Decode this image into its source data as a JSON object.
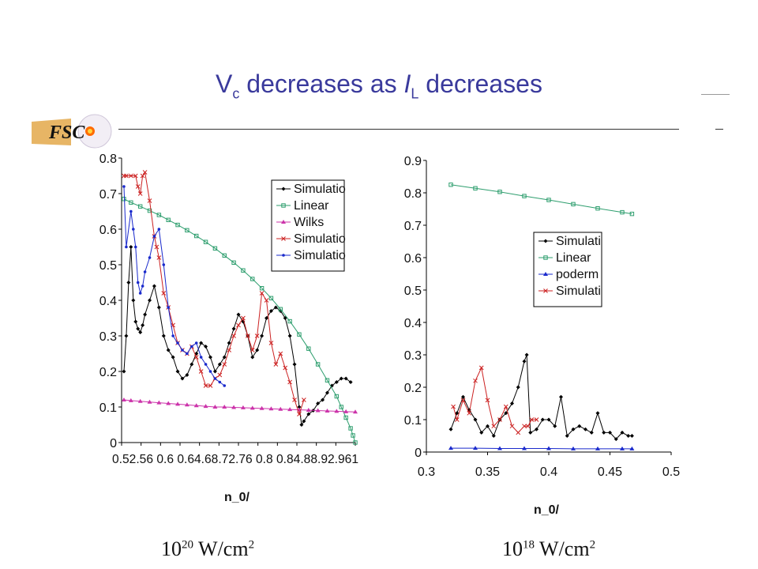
{
  "page": {
    "title_prefix": "V",
    "title_sub": "c",
    "title_mid": " decreases as ",
    "title_il": "I",
    "title_il_sub": "L",
    "title_suffix": " decreases",
    "logo": "FSC",
    "captions": [
      {
        "base": "10",
        "exp": "20",
        "unit": " W/cm",
        "unit_exp": "2"
      },
      {
        "base": "10",
        "exp": "18",
        "unit": " W/cm",
        "unit_exp": "2"
      }
    ]
  },
  "chart_data": [
    {
      "type": "line",
      "xlabel": "n_0/",
      "ylabel": "",
      "xlim": [
        0.5,
        1.0
      ],
      "ylim": [
        0,
        0.8
      ],
      "yticks": [
        "0",
        "0.1",
        "0.2",
        "0.3",
        "0.4",
        "0.5",
        "0.6",
        "0.7",
        "0.8"
      ],
      "xticks": [
        "0.52",
        "0.56",
        "0.6",
        "0.64",
        "0.68",
        "0.72",
        "0.76",
        "0.8",
        "0.84",
        "0.88",
        "0.92",
        "0.96",
        "1"
      ],
      "xtick_text": "0.52.56 0.6 0.64.68.72.76 0.8 0.84.88.92.961",
      "legend": {
        "position": "top-right",
        "labels": [
          "Simulatio",
          "Linear",
          "Wilks",
          "Simulatio",
          "Simulatio"
        ]
      },
      "colors": {
        "black": "#000000",
        "green": "#2e9e6e",
        "magenta": "#cc33aa",
        "red": "#cc2222",
        "blue": "#1a2acc"
      },
      "series": [
        {
          "color": "black",
          "marker": "diamond",
          "x": [
            0.505,
            0.51,
            0.515,
            0.52,
            0.525,
            0.53,
            0.535,
            0.54,
            0.545,
            0.55,
            0.56,
            0.57,
            0.58,
            0.59,
            0.6,
            0.61,
            0.62,
            0.63,
            0.64,
            0.65,
            0.66,
            0.67,
            0.68,
            0.69,
            0.7,
            0.71,
            0.72,
            0.73,
            0.74,
            0.75,
            0.76,
            0.77,
            0.78,
            0.79,
            0.8,
            0.81,
            0.82,
            0.83,
            0.84,
            0.85,
            0.86,
            0.87,
            0.88,
            0.885,
            0.89,
            0.9,
            0.91,
            0.92,
            0.93,
            0.94,
            0.95,
            0.96,
            0.97,
            0.98,
            0.99
          ],
          "y": [
            0.2,
            0.3,
            0.45,
            0.55,
            0.4,
            0.34,
            0.32,
            0.31,
            0.33,
            0.36,
            0.4,
            0.44,
            0.38,
            0.3,
            0.26,
            0.24,
            0.2,
            0.18,
            0.19,
            0.22,
            0.25,
            0.28,
            0.27,
            0.24,
            0.2,
            0.22,
            0.24,
            0.28,
            0.32,
            0.36,
            0.34,
            0.3,
            0.24,
            0.26,
            0.3,
            0.35,
            0.37,
            0.38,
            0.37,
            0.35,
            0.3,
            0.22,
            0.1,
            0.05,
            0.06,
            0.08,
            0.09,
            0.11,
            0.12,
            0.14,
            0.16,
            0.17,
            0.18,
            0.18,
            0.17
          ]
        },
        {
          "color": "green",
          "marker": "square",
          "x": [
            0.505,
            0.52,
            0.54,
            0.56,
            0.58,
            0.6,
            0.62,
            0.64,
            0.66,
            0.68,
            0.7,
            0.72,
            0.74,
            0.76,
            0.78,
            0.8,
            0.82,
            0.84,
            0.86,
            0.88,
            0.9,
            0.92,
            0.94,
            0.96,
            0.97,
            0.98,
            0.99,
            0.995,
            1.0
          ],
          "y": [
            0.685,
            0.675,
            0.664,
            0.652,
            0.64,
            0.626,
            0.612,
            0.597,
            0.581,
            0.564,
            0.546,
            0.526,
            0.506,
            0.484,
            0.46,
            0.434,
            0.406,
            0.375,
            0.341,
            0.304,
            0.264,
            0.22,
            0.175,
            0.13,
            0.1,
            0.07,
            0.04,
            0.02,
            0.0
          ]
        },
        {
          "color": "magenta",
          "marker": "triangle",
          "x": [
            0.505,
            0.52,
            0.54,
            0.56,
            0.58,
            0.6,
            0.62,
            0.64,
            0.66,
            0.68,
            0.7,
            0.72,
            0.74,
            0.76,
            0.78,
            0.8,
            0.82,
            0.84,
            0.86,
            0.88,
            0.9,
            0.92,
            0.94,
            0.96,
            0.98,
            1.0
          ],
          "y": [
            0.12,
            0.118,
            0.116,
            0.114,
            0.112,
            0.11,
            0.108,
            0.106,
            0.104,
            0.102,
            0.1,
            0.1,
            0.099,
            0.098,
            0.097,
            0.096,
            0.095,
            0.094,
            0.093,
            0.092,
            0.091,
            0.09,
            0.089,
            0.088,
            0.087,
            0.086
          ]
        },
        {
          "color": "red",
          "marker": "x",
          "x": [
            0.505,
            0.51,
            0.52,
            0.53,
            0.535,
            0.54,
            0.545,
            0.55,
            0.56,
            0.57,
            0.575,
            0.58,
            0.59,
            0.6,
            0.61,
            0.62,
            0.63,
            0.64,
            0.65,
            0.66,
            0.67,
            0.68,
            0.69,
            0.7,
            0.71,
            0.72,
            0.73,
            0.74,
            0.75,
            0.76,
            0.77,
            0.78,
            0.79,
            0.8,
            0.81,
            0.82,
            0.83,
            0.84,
            0.85,
            0.86,
            0.87,
            0.88,
            0.89
          ],
          "y": [
            0.75,
            0.75,
            0.75,
            0.75,
            0.72,
            0.7,
            0.75,
            0.76,
            0.68,
            0.58,
            0.55,
            0.52,
            0.42,
            0.38,
            0.33,
            0.28,
            0.26,
            0.25,
            0.27,
            0.24,
            0.2,
            0.16,
            0.16,
            0.18,
            0.19,
            0.22,
            0.26,
            0.3,
            0.33,
            0.35,
            0.3,
            0.26,
            0.3,
            0.42,
            0.4,
            0.28,
            0.22,
            0.25,
            0.21,
            0.17,
            0.12,
            0.08,
            0.12
          ]
        },
        {
          "color": "blue",
          "marker": "dot",
          "x": [
            0.505,
            0.51,
            0.52,
            0.525,
            0.53,
            0.535,
            0.54,
            0.545,
            0.55,
            0.56,
            0.57,
            0.58,
            0.59,
            0.6,
            0.61,
            0.62,
            0.63,
            0.64,
            0.65,
            0.66,
            0.67,
            0.68,
            0.69,
            0.7,
            0.71,
            0.72
          ],
          "y": [
            0.72,
            0.55,
            0.65,
            0.6,
            0.55,
            0.45,
            0.42,
            0.44,
            0.48,
            0.52,
            0.58,
            0.6,
            0.5,
            0.38,
            0.3,
            0.28,
            0.26,
            0.25,
            0.27,
            0.28,
            0.24,
            0.22,
            0.2,
            0.18,
            0.17,
            0.16
          ]
        }
      ]
    },
    {
      "type": "line",
      "xlabel": "n_0/",
      "ylabel": "",
      "xlim": [
        0.3,
        0.5
      ],
      "ylim": [
        0,
        0.9
      ],
      "yticks": [
        "0",
        "0.1",
        "0.2",
        "0.3",
        "0.4",
        "0.5",
        "0.6",
        "0.7",
        "0.8",
        "0.9"
      ],
      "xticks": [
        "0.3",
        "0.35",
        "0.4",
        "0.45",
        "0.5"
      ],
      "legend": {
        "position": "center-right",
        "labels": [
          "Simulati",
          "Linear",
          "poderm",
          "Simulati"
        ]
      },
      "colors": {
        "black": "#000000",
        "green": "#2e9e6e",
        "blue": "#1a2acc",
        "red": "#cc2222"
      },
      "series": [
        {
          "color": "black",
          "marker": "diamond",
          "x": [
            0.32,
            0.325,
            0.33,
            0.335,
            0.34,
            0.345,
            0.35,
            0.355,
            0.36,
            0.365,
            0.37,
            0.375,
            0.38,
            0.382,
            0.385,
            0.39,
            0.395,
            0.4,
            0.405,
            0.41,
            0.415,
            0.42,
            0.425,
            0.43,
            0.435,
            0.44,
            0.445,
            0.45,
            0.455,
            0.46,
            0.465,
            0.468
          ],
          "y": [
            0.07,
            0.12,
            0.17,
            0.13,
            0.1,
            0.06,
            0.08,
            0.05,
            0.1,
            0.12,
            0.15,
            0.2,
            0.28,
            0.3,
            0.06,
            0.07,
            0.1,
            0.1,
            0.08,
            0.17,
            0.05,
            0.07,
            0.08,
            0.07,
            0.06,
            0.12,
            0.06,
            0.06,
            0.04,
            0.06,
            0.05,
            0.05
          ]
        },
        {
          "color": "green",
          "marker": "square",
          "x": [
            0.32,
            0.34,
            0.36,
            0.38,
            0.4,
            0.42,
            0.44,
            0.46,
            0.468
          ],
          "y": [
            0.825,
            0.814,
            0.803,
            0.79,
            0.778,
            0.765,
            0.752,
            0.74,
            0.735
          ]
        },
        {
          "color": "blue",
          "marker": "triangle",
          "x": [
            0.32,
            0.34,
            0.36,
            0.38,
            0.4,
            0.42,
            0.44,
            0.46,
            0.468
          ],
          "y": [
            0.012,
            0.012,
            0.011,
            0.011,
            0.011,
            0.01,
            0.01,
            0.01,
            0.01
          ]
        },
        {
          "color": "red",
          "marker": "x",
          "x": [
            0.322,
            0.325,
            0.33,
            0.335,
            0.34,
            0.345,
            0.35,
            0.355,
            0.36,
            0.365,
            0.37,
            0.375,
            0.38,
            0.383,
            0.386,
            0.39
          ],
          "y": [
            0.14,
            0.1,
            0.16,
            0.12,
            0.22,
            0.26,
            0.16,
            0.08,
            0.1,
            0.14,
            0.08,
            0.06,
            0.08,
            0.08,
            0.1,
            0.1
          ]
        }
      ]
    }
  ]
}
